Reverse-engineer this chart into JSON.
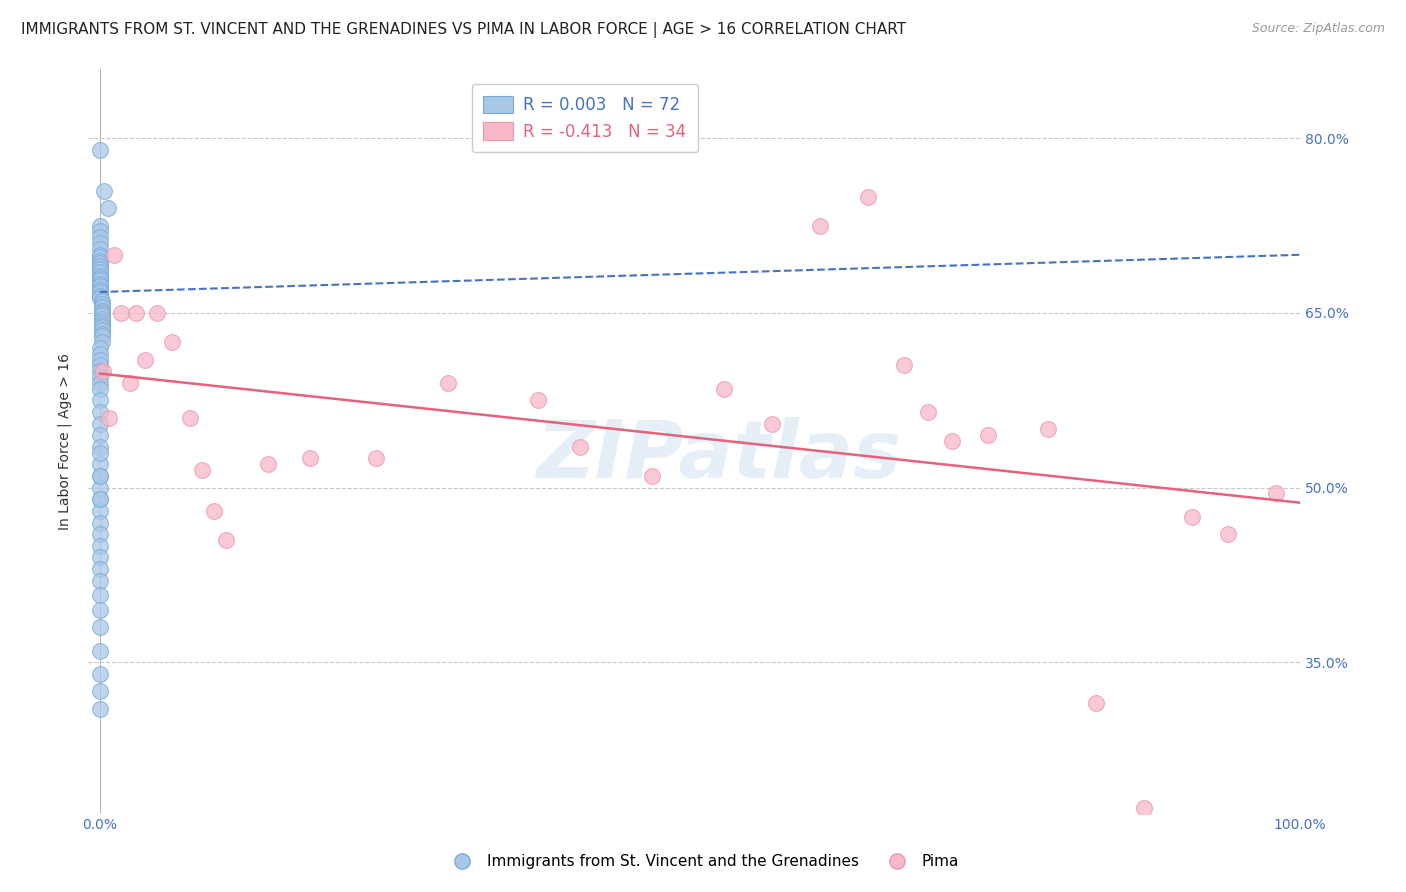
{
  "title": "IMMIGRANTS FROM ST. VINCENT AND THE GRENADINES VS PIMA IN LABOR FORCE | AGE > 16 CORRELATION CHART",
  "source": "Source: ZipAtlas.com",
  "ylabel": "In Labor Force | Age > 16",
  "ytick_values": [
    0.35,
    0.5,
    0.65,
    0.8
  ],
  "ytick_right_color": "#4472c4",
  "xlim": [
    -0.01,
    1.0
  ],
  "ylim": [
    0.22,
    0.86
  ],
  "background_color": "#ffffff",
  "grid_color": "#c8c8c8",
  "watermark": "ZIPatlas",
  "legend_entries": [
    {
      "label": "R = 0.003   N = 72",
      "color": "#a8c8e8"
    },
    {
      "label": "R = -0.413   N = 34",
      "color": "#f8b8c8"
    }
  ],
  "blue_scatter_x": [
    0.0,
    0.004,
    0.007,
    0.0,
    0.0,
    0.0,
    0.0,
    0.0,
    0.0,
    0.0,
    0.0,
    0.0,
    0.0,
    0.0,
    0.0,
    0.0,
    0.0,
    0.0,
    0.0,
    0.0,
    0.0,
    0.0,
    0.0,
    0.0,
    0.002,
    0.002,
    0.002,
    0.002,
    0.002,
    0.002,
    0.002,
    0.002,
    0.002,
    0.002,
    0.002,
    0.002,
    0.002,
    0.002,
    0.0,
    0.0,
    0.0,
    0.0,
    0.0,
    0.0,
    0.0,
    0.0,
    0.0,
    0.0,
    0.0,
    0.0,
    0.0,
    0.0,
    0.0,
    0.0,
    0.0,
    0.0,
    0.0,
    0.0,
    0.0,
    0.0,
    0.0,
    0.0,
    0.0,
    0.0,
    0.0,
    0.0,
    0.0,
    0.0,
    0.0,
    0.0,
    0.0,
    0.0
  ],
  "blue_scatter_y": [
    0.79,
    0.755,
    0.74,
    0.725,
    0.72,
    0.715,
    0.71,
    0.705,
    0.7,
    0.698,
    0.695,
    0.693,
    0.69,
    0.688,
    0.685,
    0.682,
    0.68,
    0.678,
    0.675,
    0.673,
    0.67,
    0.668,
    0.665,
    0.663,
    0.66,
    0.658,
    0.655,
    0.652,
    0.65,
    0.648,
    0.645,
    0.642,
    0.64,
    0.638,
    0.635,
    0.632,
    0.63,
    0.625,
    0.62,
    0.615,
    0.61,
    0.605,
    0.6,
    0.595,
    0.59,
    0.585,
    0.575,
    0.565,
    0.555,
    0.545,
    0.535,
    0.52,
    0.51,
    0.5,
    0.49,
    0.48,
    0.47,
    0.46,
    0.45,
    0.44,
    0.43,
    0.42,
    0.408,
    0.395,
    0.38,
    0.36,
    0.34,
    0.325,
    0.31,
    0.49,
    0.51,
    0.53
  ],
  "pink_scatter_x": [
    0.003,
    0.008,
    0.012,
    0.018,
    0.025,
    0.03,
    0.038,
    0.048,
    0.06,
    0.075,
    0.085,
    0.095,
    0.105,
    0.14,
    0.175,
    0.23,
    0.29,
    0.365,
    0.4,
    0.46,
    0.52,
    0.56,
    0.6,
    0.64,
    0.67,
    0.69,
    0.71,
    0.74,
    0.79,
    0.83,
    0.87,
    0.91,
    0.94,
    0.98
  ],
  "pink_scatter_y": [
    0.6,
    0.56,
    0.7,
    0.65,
    0.59,
    0.65,
    0.61,
    0.65,
    0.625,
    0.56,
    0.515,
    0.48,
    0.455,
    0.52,
    0.525,
    0.525,
    0.59,
    0.575,
    0.535,
    0.51,
    0.585,
    0.555,
    0.725,
    0.75,
    0.605,
    0.565,
    0.54,
    0.545,
    0.55,
    0.315,
    0.225,
    0.475,
    0.46,
    0.495
  ],
  "blue_line_x": [
    0.0,
    1.0
  ],
  "blue_line_y": [
    0.668,
    0.7
  ],
  "pink_line_x": [
    0.0,
    1.0
  ],
  "pink_line_y": [
    0.598,
    0.487
  ],
  "blue_line_color": "#4472c4",
  "pink_line_color": "#e8607a",
  "blue_scatter_color": "#a8c8e8",
  "pink_scatter_color": "#f8b8c8",
  "title_fontsize": 11,
  "source_fontsize": 9,
  "axis_label_fontsize": 10,
  "tick_fontsize": 10,
  "legend_r_color_blue": "#4472c4",
  "legend_r_color_pink": "#e8607a",
  "bottom_legend_blue": "Immigrants from St. Vincent and the Grenadines",
  "bottom_legend_pink": "Pima"
}
